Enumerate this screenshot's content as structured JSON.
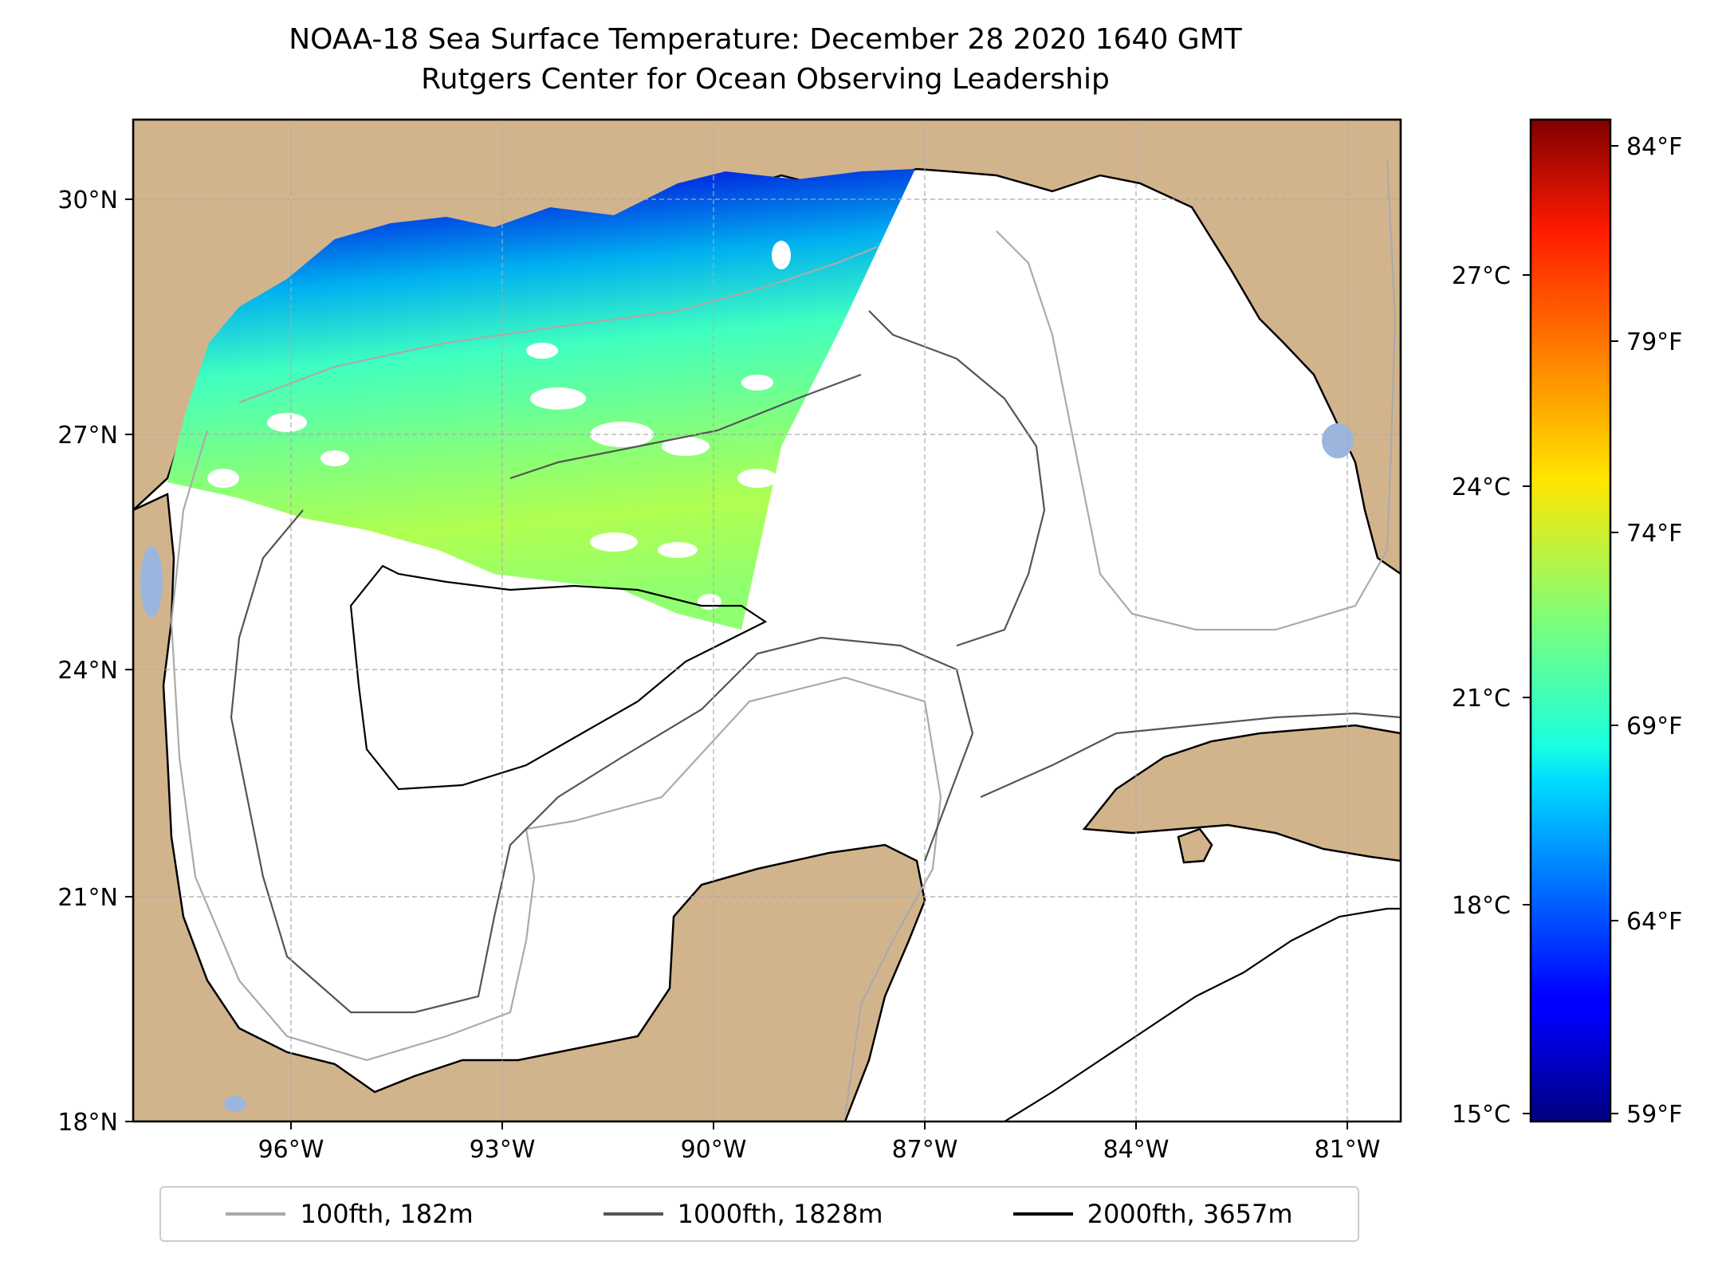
{
  "title": {
    "line1": "NOAA-18 Sea Surface Temperature: December 28 2020 1640 GMT",
    "line2": "Rutgers Center for Ocean Observing Leadership"
  },
  "map": {
    "lat_ticks": [
      "30°N",
      "27°N",
      "24°N",
      "21°N",
      "18°N"
    ],
    "lon_ticks": [
      "96°W",
      "93°W",
      "90°W",
      "87°W",
      "84°W",
      "81°W"
    ],
    "land_color": "#d2b48c",
    "lake_color": "#9bb5df",
    "ocean_color": "#ffffff"
  },
  "colorbar": {
    "celsius_ticks": [
      "27°C",
      "24°C",
      "21°C",
      "18°C",
      "15°C"
    ],
    "fahrenheit_ticks": [
      "84°F",
      "79°F",
      "74°F",
      "69°F",
      "64°F",
      "59°F"
    ],
    "colormap": "jet",
    "range_celsius": [
      15,
      29
    ]
  },
  "legend": {
    "items": [
      {
        "label": "100fth, 182m",
        "color": "#aaaaaa"
      },
      {
        "label": "1000fth, 1828m",
        "color": "#555555"
      },
      {
        "label": "2000fth, 3657m",
        "color": "#000000"
      }
    ]
  }
}
